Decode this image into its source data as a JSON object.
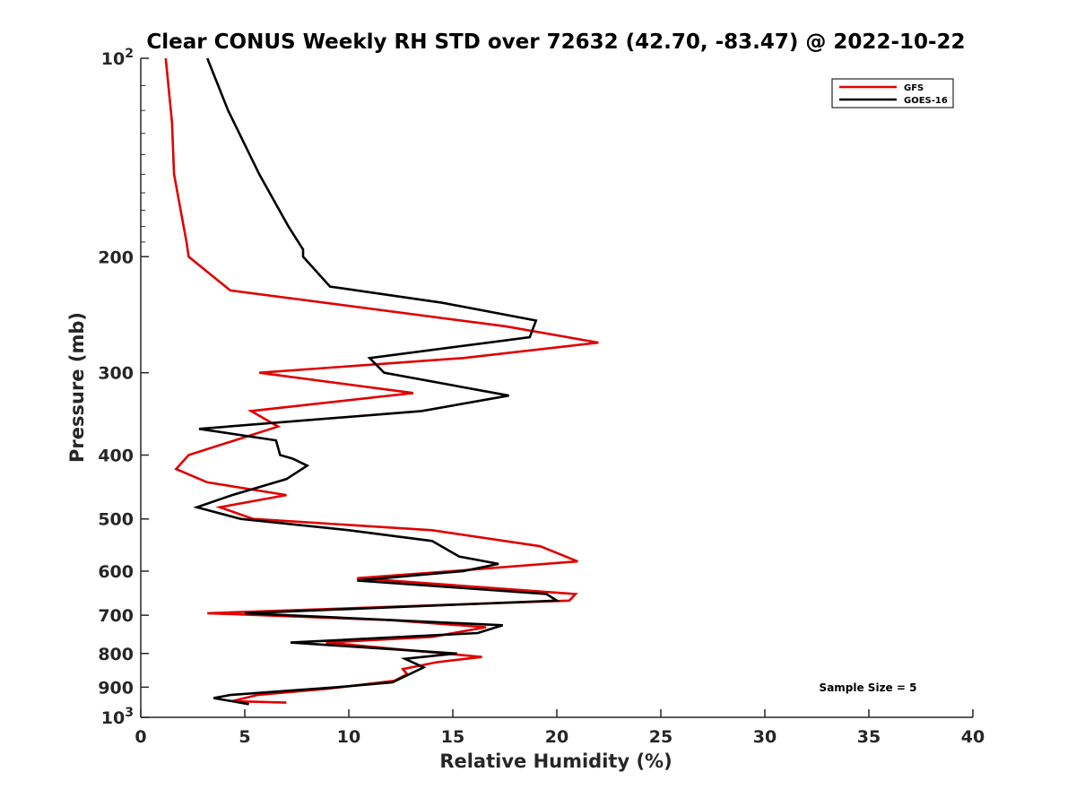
{
  "chart_data": {
    "type": "line",
    "title": "Clear CONUS Weekly RH STD over 72632 (42.70, -83.47) @ 2022-10-22",
    "xlabel": "Relative Humidity (%)",
    "ylabel": "Pressure (mb)",
    "xlim": [
      0,
      40
    ],
    "ylim": [
      100,
      1000
    ],
    "yscale": "log",
    "y_reversed": true,
    "grid": false,
    "x_ticks": [
      "0",
      "5",
      "10",
      "15",
      "20",
      "25",
      "30",
      "35",
      "40"
    ],
    "y_ticks": [
      {
        "value": 100,
        "label": "10",
        "sup": "2"
      },
      {
        "value": 200,
        "label": "200"
      },
      {
        "value": 300,
        "label": "300"
      },
      {
        "value": 400,
        "label": "400"
      },
      {
        "value": 500,
        "label": "500"
      },
      {
        "value": 600,
        "label": "600"
      },
      {
        "value": 700,
        "label": "700"
      },
      {
        "value": 800,
        "label": "800"
      },
      {
        "value": 900,
        "label": "900"
      },
      {
        "value": 1000,
        "label": "10",
        "sup": "3"
      }
    ],
    "legend": {
      "position": "top-right"
    },
    "annotation": "Sample Size = 5",
    "series": [
      {
        "name": "GFS",
        "color": "#e00000",
        "points": [
          [
            1.2,
            100
          ],
          [
            1.5,
            125
          ],
          [
            1.6,
            150
          ],
          [
            2.2,
            190
          ],
          [
            2.3,
            200
          ],
          [
            4.3,
            225
          ],
          [
            17.5,
            255
          ],
          [
            22.0,
            270
          ],
          [
            15.5,
            285
          ],
          [
            5.7,
            300
          ],
          [
            13.1,
            322
          ],
          [
            5.3,
            343
          ],
          [
            6.6,
            362
          ],
          [
            2.3,
            400
          ],
          [
            1.7,
            420
          ],
          [
            3.2,
            440
          ],
          [
            7.0,
            460
          ],
          [
            3.8,
            480
          ],
          [
            5.4,
            500
          ],
          [
            14.0,
            520
          ],
          [
            19.2,
            550
          ],
          [
            21.0,
            580
          ],
          [
            15.0,
            600
          ],
          [
            10.4,
            615
          ],
          [
            20.9,
            650
          ],
          [
            20.6,
            665
          ],
          [
            3.2,
            695
          ],
          [
            12.0,
            712
          ],
          [
            16.6,
            730
          ],
          [
            14.0,
            755
          ],
          [
            8.9,
            770
          ],
          [
            16.4,
            810
          ],
          [
            14.2,
            825
          ],
          [
            12.6,
            845
          ],
          [
            12.8,
            860
          ],
          [
            12.2,
            880
          ],
          [
            9.0,
            905
          ],
          [
            5.6,
            925
          ],
          [
            4.4,
            945
          ],
          [
            7.0,
            950
          ]
        ]
      },
      {
        "name": "GOES-16",
        "color": "#000000",
        "points": [
          [
            3.2,
            100
          ],
          [
            4.2,
            120
          ],
          [
            5.7,
            150
          ],
          [
            7.1,
            180
          ],
          [
            7.8,
            195
          ],
          [
            7.8,
            200
          ],
          [
            9.1,
            222
          ],
          [
            14.5,
            235
          ],
          [
            19.0,
            250
          ],
          [
            18.7,
            265
          ],
          [
            11.0,
            285
          ],
          [
            11.7,
            300
          ],
          [
            17.7,
            325
          ],
          [
            13.5,
            343
          ],
          [
            2.8,
            365
          ],
          [
            6.5,
            380
          ],
          [
            6.7,
            400
          ],
          [
            7.3,
            405
          ],
          [
            8.0,
            415
          ],
          [
            7.0,
            435
          ],
          [
            4.4,
            460
          ],
          [
            2.7,
            480
          ],
          [
            4.8,
            500
          ],
          [
            10.0,
            520
          ],
          [
            14.0,
            540
          ],
          [
            15.3,
            570
          ],
          [
            17.2,
            585
          ],
          [
            15.5,
            600
          ],
          [
            10.4,
            620
          ],
          [
            19.5,
            650
          ],
          [
            20.0,
            665
          ],
          [
            5.0,
            695
          ],
          [
            17.4,
            725
          ],
          [
            16.2,
            745
          ],
          [
            7.2,
            770
          ],
          [
            15.2,
            800
          ],
          [
            12.7,
            815
          ],
          [
            13.6,
            840
          ],
          [
            12.1,
            885
          ],
          [
            9.4,
            900
          ],
          [
            4.3,
            925
          ],
          [
            3.5,
            935
          ],
          [
            5.2,
            955
          ]
        ]
      }
    ]
  }
}
